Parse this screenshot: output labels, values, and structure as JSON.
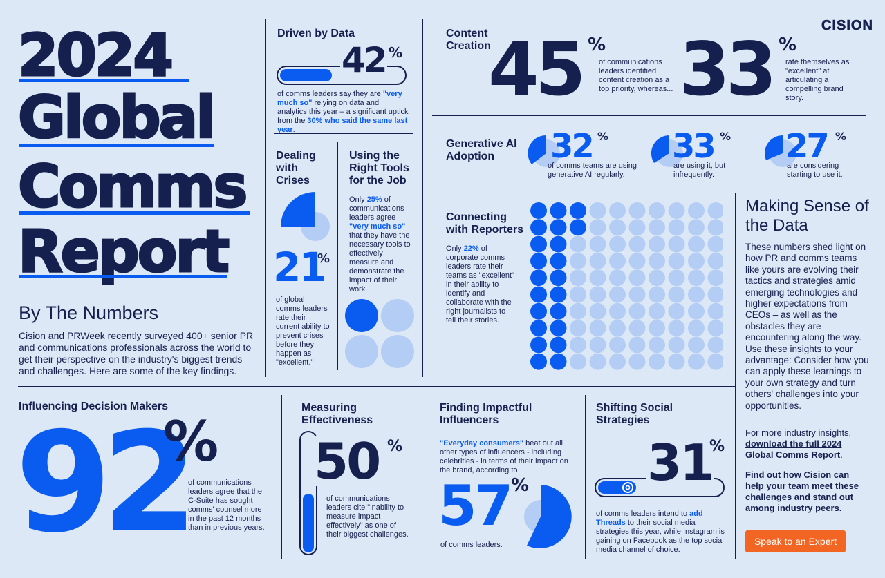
{
  "brand": {
    "logo": "CISION"
  },
  "title": {
    "lines": [
      "2024",
      "Global",
      "Comms",
      "Report"
    ],
    "subtitle": "By The Numbers",
    "intro": "Cision and PRWeek recently surveyed 400+ senior PR and communications professionals across the world to get their perspective on the industry's biggest trends and challenges. Here are some of the key findings."
  },
  "driven": {
    "heading": "Driven by Data",
    "value": "42",
    "pct": "%",
    "bar_fill_percent": 42,
    "text_a": "of comms leaders say they are ",
    "hl_a": "\"very much so\"",
    "text_b": " relying on data and analytics this year – a significant uptick from the ",
    "hl_b": "30% who said the same last year",
    "text_c": "."
  },
  "crises": {
    "heading": "Dealing with Crises",
    "value": "21",
    "pct": "%",
    "text": "of global comms leaders rate their current ability to prevent crises before they happen as \"excellent.\""
  },
  "tools": {
    "heading": "Using the Right Tools for the Job",
    "text_a": "Only ",
    "hl_a": "25%",
    "text_b": " of communications leaders agree ",
    "hl_b": "\"very much so\"",
    "text_c": " that they have the necessary tools to effectively measure and demonstrate the impact of their work.",
    "filled_circles": 1,
    "total_circles": 4
  },
  "content": {
    "heading": "Content Creation",
    "stat1": {
      "value": "45",
      "pct": "%",
      "text": "of communications leaders identified content creation as a top priority, whereas..."
    },
    "stat2": {
      "value": "33",
      "pct": "%",
      "text": "rate themselves as \"excellent\" at articulating a compelling brand story."
    }
  },
  "genai": {
    "heading": "Generative AI Adoption",
    "stats": [
      {
        "value": "32",
        "pct": "%",
        "text": "of comms teams are using generative AI regularly."
      },
      {
        "value": "33",
        "pct": "%",
        "text": "are using it, but infrequently."
      },
      {
        "value": "27",
        "pct": "%",
        "text": "are considering starting to use it."
      }
    ]
  },
  "reporters": {
    "heading": "Connecting with Reporters",
    "text_a": "Only ",
    "hl_a": "22%",
    "text_b": " of corporate comms leaders rate their teams as \"excellent\" in their ability to identify and collaborate with the right journalists to tell their stories.",
    "filled_dots": 22,
    "total_dots": 100
  },
  "sense": {
    "heading": "Making Sense of the Data",
    "body": "These numbers shed light on how PR and comms teams like yours are evolving their tactics and strategies amid emerging technologies and higher expectations from CEOs – as well as the obstacles they are encountering along the way. Use these insights to your advantage: Consider how you can apply these learnings to your own strategy and turn others' challenges into your opportunities.",
    "more_a": "For more industry insights, ",
    "more_link": "download the full 2024 Global Comms Report",
    "more_b": ".",
    "help": "Find out how Cision can help your team meet these challenges and stand out among industry peers.",
    "cta": "Speak to an Expert"
  },
  "influencing": {
    "heading": "Influencing Decision Makers",
    "value": "92",
    "pct": "%",
    "text": "of communications leaders agree that the C-Suite has sought comms' counsel more in the past 12 months than in previous years."
  },
  "measuring": {
    "heading": "Measuring Effectiveness",
    "value": "50",
    "pct": "%",
    "bar_fill_percent": 50,
    "text": "of communications leaders cite \"inability to measure impact effectively\" as one of their biggest challenges."
  },
  "influencers": {
    "heading": "Finding Impactful Influencers",
    "hl": "\"Everyday consumers\"",
    "text": " beat out all other types of influencers - including celebrities - in terms of their impact on the brand, according to",
    "value": "57",
    "pct": "%",
    "sub": "of comms leaders."
  },
  "social": {
    "heading": "Shifting Social Strategies",
    "value": "31",
    "pct": "%",
    "bar_fill_percent": 31,
    "text_a": "of comms leaders intend to ",
    "hl_a": "add Threads",
    "text_b": " to their social media strategies this year, while Instagram is gaining on Facebook as the top social media channel of choice."
  },
  "colors": {
    "navy": "#16204f",
    "blue": "#0a5cf0",
    "light": "#b3cdf5",
    "bg": "#dde8f6",
    "orange": "#f26522"
  },
  "icons": [
    "threads-icon"
  ]
}
